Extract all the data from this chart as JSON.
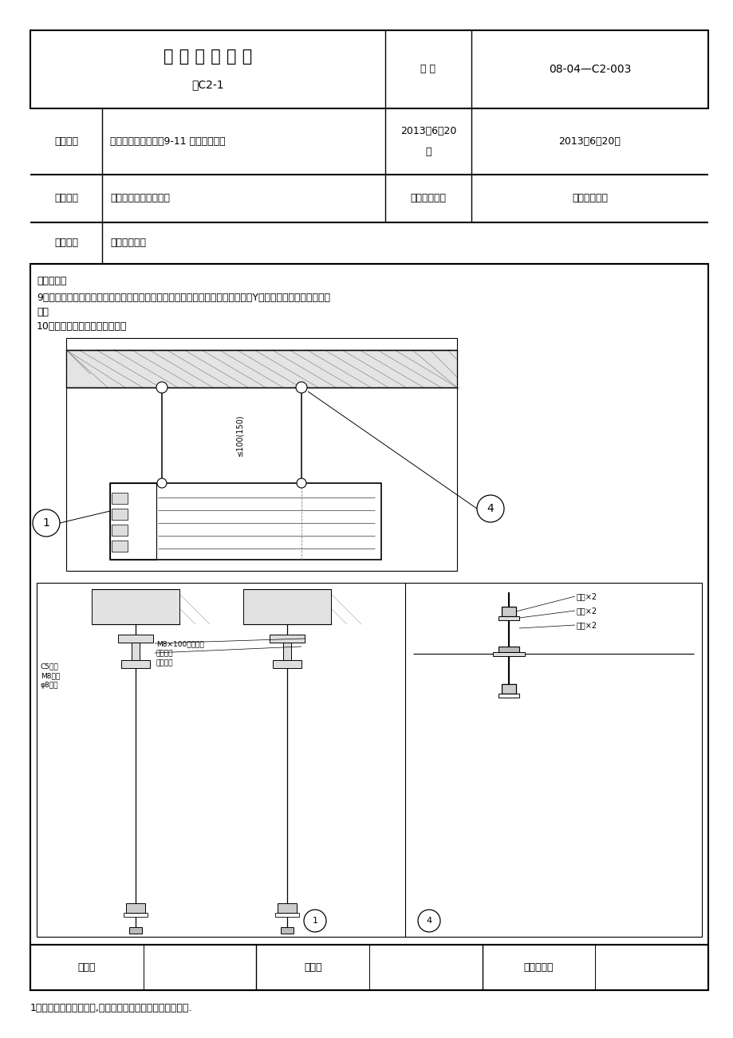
{
  "title_main": "技 术 交 底 记 录",
  "title_sub": "表C2-1",
  "bh_label": "编 号",
  "bh_value": "08-04—C2-003",
  "gczmc_label": "工程名称",
  "gczmc_value": "西单汇大厦办公用房9-11 装修改造工程",
  "date_label_1": "2013年6月20",
  "date_label_2": "日",
  "date_right": "2013年6月20日",
  "sgdw_label": "施工单位",
  "sgdw_value": "河北建设集团有限公司",
  "fxgczmc_label": "分项工程名称",
  "fxgczmc_value": "风机盘管安装",
  "jdty_label": "交底提要",
  "jdty_value": "风机盘管安装",
  "jdnr_label": "交底内容：",
  "text_line1": "9．风机盘管同冷热媒水管连接，应在管道系统冲洗排污后进行连接，且入水口加Y型过滤器，以防堵塞热交换",
  "text_line2": "器。",
  "text_line3": "10．卧式风机盘管安装见下图：",
  "label_c5": "C5槽型",
  "label_m8luo": "M8螺栓",
  "label_diaogan": "φ8吊杆",
  "label_m8zhang": "M8×100胀锚螺栓",
  "label_fangchuan": "方铁垫圈",
  "label_tanhuang": "弹簧垫圈",
  "label_luomu": "螺母×2",
  "label_dianjuan": "垫圈×2",
  "label_jiaodian": "胶垫×2",
  "dim_text": "≤100(150)",
  "footer_shr": "审核人",
  "footer_jdr": "交底人",
  "footer_jsjdr": "接受交底人",
  "footnote": "1、本表由施工单位填写,交底单位与接受交底单位各存一份.",
  "bg_color": "#ffffff"
}
